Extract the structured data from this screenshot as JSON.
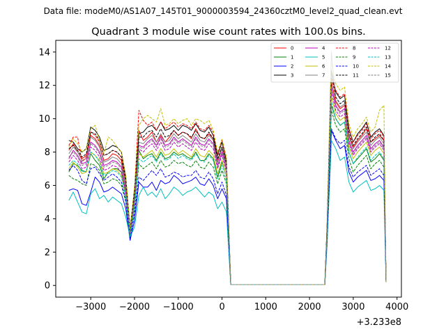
{
  "file_label": "Data file: modeM0/AS1A07_145T01_9000003594_24360cztM0_level2_quad_clean.evt",
  "chart_data": {
    "type": "line",
    "title": "Quadrant 3 module wise count rates with 100.0s bins.",
    "xlabel": "",
    "ylabel": "",
    "x_offset_label": "+3.233e8",
    "xlim": [
      -3800,
      4100
    ],
    "ylim": [
      -0.7,
      14.7
    ],
    "xticks": [
      -3000,
      -2000,
      -1000,
      0,
      1000,
      2000,
      3000,
      4000
    ],
    "xtick_labels": [
      "−3000",
      "−2000",
      "−1000",
      "0",
      "1000",
      "2000",
      "3000",
      "4000"
    ],
    "yticks": [
      0,
      2,
      4,
      6,
      8,
      10,
      12,
      14
    ],
    "ytick_labels": [
      "0",
      "2",
      "4",
      "6",
      "8",
      "10",
      "12",
      "14"
    ],
    "legend_position": "top-right",
    "x": [
      -3500,
      -3400,
      -3300,
      -3200,
      -3100,
      -3000,
      -2900,
      -2800,
      -2700,
      -2600,
      -2500,
      -2400,
      -2300,
      -2200,
      -2100,
      -2000,
      -1900,
      -1800,
      -1700,
      -1600,
      -1500,
      -1400,
      -1300,
      -1200,
      -1100,
      -1000,
      -900,
      -800,
      -700,
      -600,
      -500,
      -400,
      -300,
      -200,
      -100,
      0,
      100,
      200,
      250,
      2350,
      2400,
      2500,
      2600,
      2700,
      2800,
      2900,
      3000,
      3100,
      3200,
      3300,
      3400,
      3500,
      3600,
      3700,
      3750
    ],
    "series": [
      {
        "name": "0",
        "color": "#ff0000",
        "style": "solid",
        "values": [
          8.1,
          8.5,
          8.0,
          7.6,
          7.8,
          9.0,
          8.8,
          8.4,
          7.5,
          7.6,
          7.9,
          7.8,
          7.5,
          6.0,
          3.2,
          5.5,
          9.3,
          8.7,
          8.9,
          9.2,
          8.6,
          9.0,
          8.6,
          8.9,
          9.3,
          9.0,
          9.2,
          9.1,
          8.8,
          9.4,
          8.9,
          8.8,
          9.1,
          8.8,
          7.5,
          8.3,
          7.3,
          0.05,
          0.05,
          0.05,
          3.5,
          12.2,
          11.0,
          10.6,
          10.8,
          9.0,
          8.3,
          8.7,
          9.0,
          9.4,
          8.6,
          8.8,
          9.0,
          8.7,
          0.2
        ]
      },
      {
        "name": "1",
        "color": "#008000",
        "style": "solid",
        "values": [
          6.8,
          7.3,
          7.2,
          6.9,
          6.8,
          7.9,
          7.5,
          7.2,
          6.4,
          6.8,
          7.0,
          7.0,
          6.8,
          5.6,
          3.0,
          5.0,
          8.1,
          7.6,
          7.8,
          7.9,
          7.5,
          8.0,
          7.6,
          7.7,
          8.0,
          7.8,
          7.9,
          7.7,
          7.6,
          8.0,
          7.5,
          7.5,
          7.9,
          7.6,
          6.5,
          7.4,
          6.6,
          0.05,
          0.05,
          0.05,
          3.1,
          10.8,
          10.0,
          9.6,
          9.8,
          8.0,
          7.3,
          7.6,
          7.9,
          8.2,
          7.4,
          7.6,
          7.9,
          7.5,
          0.2
        ]
      },
      {
        "name": "2",
        "color": "#0000ff",
        "style": "solid",
        "values": [
          5.7,
          5.8,
          5.7,
          4.9,
          4.8,
          5.6,
          6.5,
          6.2,
          5.6,
          5.7,
          5.9,
          5.7,
          5.5,
          4.6,
          2.7,
          3.9,
          6.2,
          5.9,
          5.9,
          6.2,
          5.7,
          6.3,
          6.1,
          6.2,
          6.6,
          6.4,
          6.1,
          6.2,
          6.3,
          6.5,
          6.1,
          6.0,
          6.4,
          6.0,
          5.2,
          5.8,
          5.2,
          0.05,
          0.05,
          0.05,
          2.6,
          9.3,
          8.7,
          8.2,
          8.4,
          6.8,
          6.2,
          6.5,
          6.7,
          6.9,
          6.3,
          6.4,
          6.6,
          6.3,
          0.2
        ]
      },
      {
        "name": "3",
        "color": "#000000",
        "style": "solid",
        "values": [
          8.7,
          8.6,
          8.2,
          8.0,
          8.2,
          9.5,
          9.3,
          8.9,
          8.1,
          8.2,
          8.4,
          8.3,
          8.0,
          6.5,
          3.4,
          5.8,
          9.1,
          9.2,
          9.5,
          9.6,
          9.3,
          9.8,
          9.3,
          9.4,
          9.6,
          9.3,
          9.6,
          9.5,
          9.3,
          9.7,
          9.3,
          9.2,
          9.5,
          9.0,
          7.8,
          8.6,
          7.5,
          0.05,
          0.05,
          0.05,
          3.6,
          12.9,
          11.6,
          11.2,
          11.4,
          9.4,
          8.6,
          9.1,
          9.4,
          9.8,
          8.9,
          9.2,
          9.4,
          9.0,
          0.2
        ]
      },
      {
        "name": "4",
        "color": "#bf00bf",
        "style": "solid",
        "values": [
          7.6,
          8.1,
          7.8,
          7.3,
          7.4,
          8.6,
          8.4,
          8.0,
          7.2,
          7.3,
          7.5,
          7.4,
          7.1,
          5.8,
          3.1,
          5.3,
          8.4,
          8.3,
          8.6,
          8.8,
          8.4,
          8.9,
          8.4,
          8.5,
          8.9,
          8.6,
          8.8,
          8.6,
          8.4,
          8.9,
          8.5,
          8.4,
          8.8,
          8.5,
          7.2,
          8.0,
          7.0,
          0.05,
          0.05,
          0.05,
          3.4,
          11.9,
          10.8,
          10.4,
          10.6,
          8.7,
          8.0,
          8.4,
          8.7,
          9.0,
          8.2,
          8.5,
          8.7,
          8.3,
          0.2
        ]
      },
      {
        "name": "5",
        "color": "#00bfbf",
        "style": "solid",
        "values": [
          5.1,
          5.6,
          5.0,
          4.4,
          4.3,
          5.5,
          5.8,
          5.2,
          5.4,
          5.0,
          5.3,
          5.1,
          4.9,
          4.1,
          2.9,
          3.5,
          5.4,
          5.9,
          5.4,
          5.6,
          5.3,
          5.8,
          5.2,
          5.5,
          5.9,
          5.7,
          5.4,
          5.6,
          5.7,
          5.9,
          5.6,
          5.3,
          5.6,
          5.4,
          4.6,
          5.0,
          4.4,
          0.05,
          0.05,
          0.05,
          2.4,
          8.7,
          8.2,
          7.5,
          7.7,
          6.2,
          5.6,
          5.9,
          6.1,
          6.3,
          5.7,
          5.8,
          6.0,
          5.7,
          0.2
        ]
      },
      {
        "name": "6",
        "color": "#bfbf00",
        "style": "solid",
        "values": [
          7.0,
          7.4,
          7.1,
          6.7,
          6.8,
          8.0,
          7.8,
          7.5,
          6.7,
          6.8,
          7.0,
          6.9,
          6.6,
          5.4,
          2.9,
          4.9,
          7.9,
          7.7,
          7.9,
          8.1,
          7.7,
          8.2,
          7.8,
          7.9,
          8.2,
          7.9,
          8.1,
          7.9,
          7.7,
          8.2,
          7.8,
          7.7,
          8.1,
          7.8,
          6.7,
          7.5,
          6.6,
          0.05,
          0.05,
          0.05,
          3.2,
          11.3,
          10.3,
          9.9,
          10.1,
          8.3,
          7.6,
          8.0,
          8.3,
          8.6,
          7.8,
          8.1,
          8.3,
          7.9,
          0.2
        ]
      },
      {
        "name": "7",
        "color": "#808080",
        "style": "solid",
        "values": [
          7.9,
          8.3,
          8.0,
          7.5,
          7.6,
          8.9,
          8.7,
          8.3,
          7.4,
          7.5,
          7.7,
          7.6,
          7.3,
          6.0,
          3.2,
          5.4,
          8.6,
          8.5,
          8.8,
          9.0,
          8.6,
          9.1,
          8.6,
          8.7,
          9.1,
          8.8,
          9.0,
          8.8,
          8.6,
          9.1,
          8.7,
          8.6,
          9.0,
          8.7,
          7.4,
          8.2,
          7.2,
          0.05,
          0.05,
          0.05,
          3.5,
          14.0,
          11.1,
          10.7,
          10.9,
          8.9,
          8.2,
          8.6,
          8.9,
          9.2,
          8.4,
          8.7,
          8.9,
          8.5,
          0.2
        ]
      },
      {
        "name": "8",
        "color": "#ff0000",
        "style": "dashed",
        "values": [
          8.4,
          8.9,
          8.9,
          7.4,
          7.7,
          9.2,
          9.0,
          8.6,
          7.8,
          7.9,
          8.1,
          8.0,
          7.7,
          6.3,
          3.3,
          5.7,
          10.5,
          9.9,
          9.6,
          9.8,
          9.3,
          9.8,
          9.4,
          9.6,
          9.8,
          9.5,
          9.7,
          9.6,
          9.4,
          9.8,
          9.4,
          9.3,
          9.6,
          9.2,
          7.9,
          8.7,
          7.6,
          0.05,
          0.05,
          0.05,
          3.6,
          12.4,
          11.7,
          11.3,
          11.5,
          9.4,
          8.6,
          9.0,
          9.3,
          9.7,
          8.8,
          9.1,
          9.3,
          8.9,
          0.2
        ]
      },
      {
        "name": "9",
        "color": "#008000",
        "style": "dashed",
        "values": [
          6.6,
          6.4,
          6.3,
          6.1,
          6.0,
          7.3,
          7.2,
          6.9,
          6.1,
          6.2,
          6.4,
          6.3,
          6.0,
          5.0,
          2.9,
          4.6,
          7.3,
          7.0,
          7.2,
          7.4,
          7.0,
          7.5,
          7.1,
          7.2,
          7.5,
          7.3,
          7.4,
          7.2,
          7.1,
          7.5,
          7.1,
          7.0,
          7.4,
          7.1,
          6.1,
          6.9,
          6.1,
          0.05,
          0.05,
          0.05,
          2.9,
          10.5,
          9.6,
          9.2,
          9.4,
          7.6,
          6.8,
          7.2,
          7.5,
          7.8,
          7.0,
          7.3,
          7.5,
          7.1,
          0.2
        ]
      },
      {
        "name": "10",
        "color": "#0000ff",
        "style": "dashed",
        "values": [
          6.9,
          7.2,
          6.9,
          6.3,
          6.1,
          7.0,
          7.1,
          6.7,
          6.3,
          6.5,
          6.7,
          6.5,
          6.2,
          5.1,
          2.8,
          4.3,
          6.5,
          6.3,
          6.6,
          6.9,
          6.6,
          7.0,
          6.5,
          6.6,
          6.8,
          6.7,
          6.5,
          6.6,
          6.6,
          6.9,
          6.5,
          6.4,
          6.8,
          6.4,
          5.5,
          6.2,
          5.4,
          0.05,
          0.05,
          0.05,
          2.7,
          9.4,
          8.8,
          8.5,
          8.7,
          7.1,
          6.5,
          6.8,
          7.0,
          7.2,
          6.6,
          6.8,
          7.0,
          6.6,
          0.2
        ]
      },
      {
        "name": "11",
        "color": "#000000",
        "style": "dashed",
        "values": [
          8.2,
          8.4,
          8.1,
          7.7,
          7.9,
          9.2,
          9.1,
          8.7,
          7.8,
          7.9,
          8.1,
          8.0,
          7.7,
          6.3,
          3.3,
          5.6,
          8.9,
          8.9,
          9.2,
          9.3,
          8.9,
          9.4,
          8.9,
          9.0,
          9.3,
          9.0,
          9.2,
          9.1,
          8.9,
          9.3,
          8.9,
          8.8,
          9.2,
          8.8,
          7.6,
          8.3,
          7.3,
          0.05,
          0.05,
          0.05,
          3.5,
          12.6,
          11.3,
          10.9,
          11.1,
          9.2,
          8.4,
          8.8,
          9.1,
          9.5,
          8.6,
          8.9,
          9.1,
          8.7,
          0.2
        ]
      },
      {
        "name": "12",
        "color": "#bf00bf",
        "style": "dashed",
        "values": [
          7.4,
          7.8,
          7.5,
          7.0,
          7.1,
          8.3,
          8.1,
          7.7,
          6.9,
          7.0,
          7.2,
          7.1,
          6.8,
          5.6,
          3.0,
          5.1,
          8.2,
          8.0,
          8.3,
          8.5,
          8.1,
          8.6,
          8.1,
          8.2,
          8.6,
          8.3,
          8.5,
          8.3,
          8.1,
          8.6,
          8.2,
          8.1,
          8.5,
          8.2,
          7.0,
          7.8,
          6.8,
          0.05,
          0.05,
          0.05,
          3.3,
          11.6,
          10.5,
          10.1,
          10.3,
          8.5,
          7.8,
          8.2,
          8.5,
          8.8,
          8.0,
          8.3,
          8.5,
          8.1,
          0.2
        ]
      },
      {
        "name": "13",
        "color": "#00bfbf",
        "style": "dashed",
        "values": [
          7.2,
          7.5,
          7.3,
          6.8,
          6.9,
          8.0,
          7.8,
          7.4,
          6.6,
          6.7,
          6.9,
          6.8,
          6.5,
          5.3,
          2.9,
          4.8,
          7.6,
          7.4,
          7.6,
          7.8,
          7.4,
          7.9,
          7.5,
          7.6,
          7.9,
          7.6,
          7.8,
          7.6,
          7.5,
          7.9,
          7.5,
          7.4,
          7.8,
          7.5,
          6.4,
          7.2,
          6.3,
          0.05,
          0.05,
          0.05,
          3.1,
          11.0,
          10.0,
          9.6,
          9.8,
          8.0,
          7.3,
          7.7,
          8.0,
          8.3,
          7.5,
          7.8,
          8.0,
          7.6,
          0.2
        ]
      },
      {
        "name": "14",
        "color": "#bfbf00",
        "style": "dashed",
        "values": [
          8.3,
          8.8,
          8.5,
          8.0,
          8.2,
          9.4,
          9.6,
          8.7,
          7.9,
          8.9,
          8.7,
          8.3,
          8.0,
          6.6,
          3.4,
          5.9,
          9.6,
          10.0,
          10.2,
          10.0,
          9.8,
          10.6,
          9.6,
          9.7,
          10.0,
          9.7,
          9.9,
          10.0,
          9.6,
          10.0,
          9.9,
          9.7,
          9.9,
          9.3,
          8.0,
          8.8,
          7.7,
          0.05,
          0.05,
          0.05,
          3.7,
          13.3,
          12.1,
          11.7,
          11.9,
          9.7,
          8.9,
          9.4,
          9.7,
          10.1,
          9.2,
          9.5,
          10.5,
          10.8,
          0.2
        ]
      },
      {
        "name": "15",
        "color": "#808080",
        "style": "dashed",
        "values": [
          7.7,
          8.0,
          7.7,
          7.2,
          7.3,
          8.5,
          8.3,
          7.9,
          7.1,
          7.2,
          7.4,
          7.3,
          7.0,
          5.8,
          3.1,
          5.2,
          8.3,
          8.2,
          8.5,
          8.7,
          8.3,
          8.8,
          8.3,
          8.4,
          8.8,
          8.5,
          8.7,
          8.5,
          8.3,
          8.8,
          8.4,
          8.3,
          8.7,
          8.4,
          7.1,
          7.9,
          6.9,
          0.05,
          0.05,
          0.05,
          3.4,
          11.8,
          10.7,
          10.3,
          10.5,
          8.6,
          7.9,
          8.3,
          8.6,
          8.9,
          8.1,
          8.4,
          8.6,
          8.2,
          0.2
        ]
      }
    ]
  }
}
